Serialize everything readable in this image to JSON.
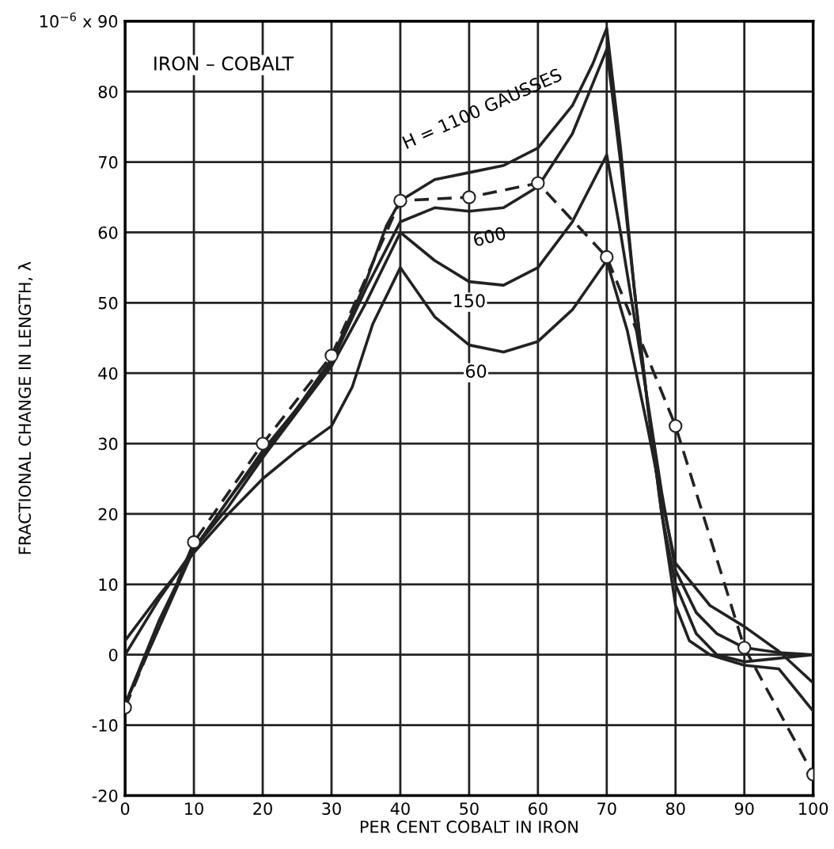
{
  "chart_data": {
    "type": "line",
    "xlabel": "PER CENT COBALT IN IRON",
    "ylabel": "FRACTIONAL CHANGE IN LENGTH, λ",
    "xlim": [
      0,
      100
    ],
    "xticks": [
      0,
      10,
      20,
      30,
      40,
      50,
      60,
      70,
      80,
      90,
      100
    ],
    "ylim": [
      -20,
      90
    ],
    "yticks": [
      -20,
      -10,
      0,
      10,
      20,
      30,
      40,
      50,
      60,
      70,
      80,
      {
        "value": 90,
        "label": "10$^{−6}$ x 90"
      }
    ],
    "grid": true,
    "legend": false,
    "series": [
      {
        "color": "#222222",
        "line_style": "solid",
        "marker": "none",
        "x": [
          0,
          5,
          10,
          15,
          20,
          25,
          30,
          35,
          38,
          40,
          45,
          50,
          55,
          60,
          65,
          68,
          70,
          72,
          74,
          76,
          78,
          80,
          83,
          86,
          90,
          95,
          100
        ],
        "values": [
          -7,
          4,
          15,
          22,
          29,
          35,
          42,
          53,
          61,
          64.5,
          67.5,
          68.5,
          69.5,
          72,
          78,
          84,
          89,
          72,
          52,
          35,
          20,
          10,
          3,
          0,
          -1,
          -0.5,
          0
        ]
      },
      {
        "color": "#222222",
        "line_style": "solid",
        "marker": "none",
        "x": [
          0,
          5,
          10,
          15,
          20,
          25,
          30,
          35,
          40,
          45,
          50,
          55,
          60,
          65,
          70,
          72,
          74,
          76,
          78,
          80,
          82,
          85,
          90,
          95,
          100
        ],
        "values": [
          -7,
          5,
          15,
          22,
          28.5,
          35,
          41.5,
          52,
          61.5,
          63.5,
          63,
          63.5,
          66.5,
          74,
          86,
          70,
          52,
          35,
          20,
          7,
          2,
          0,
          -1.5,
          -2,
          -8
        ]
      },
      {
        "color": "#222222",
        "line_style": "solid",
        "marker": "none",
        "x": [
          0,
          5,
          10,
          15,
          20,
          25,
          30,
          35,
          40,
          45,
          50,
          55,
          60,
          65,
          70,
          72,
          75,
          78,
          80,
          83,
          86,
          90,
          95,
          100
        ],
        "values": [
          0,
          8,
          15,
          21,
          28,
          34.5,
          41,
          50,
          60,
          56,
          53,
          52.5,
          55,
          61.5,
          71,
          60,
          42,
          23,
          12,
          6,
          3,
          1,
          0.3,
          0
        ]
      },
      {
        "color": "#222222",
        "line_style": "solid",
        "marker": "none",
        "x": [
          0,
          5,
          10,
          15,
          20,
          25,
          30,
          33,
          36,
          40,
          45,
          50,
          55,
          60,
          65,
          70,
          73,
          76,
          78,
          80,
          85,
          90,
          95,
          100
        ],
        "values": [
          2,
          8.5,
          14.5,
          20,
          25,
          29,
          32.5,
          38,
          47,
          55,
          48,
          44,
          43,
          44.5,
          49,
          56,
          46,
          32,
          22,
          13,
          7,
          4,
          0.5,
          -4
        ]
      },
      {
        "color": "#222222",
        "line_style": "dashed",
        "marker": "circle",
        "x": [
          0,
          10,
          20,
          30,
          40,
          50,
          60,
          70,
          80,
          90,
          100
        ],
        "values": [
          -7.5,
          16,
          30,
          42.5,
          64.5,
          65,
          67,
          56.5,
          32.5,
          1,
          -17
        ]
      }
    ],
    "annotations": [
      "IRON – COBALT",
      "H = 1100 GAUSSES",
      "600",
      "150",
      "60"
    ]
  }
}
